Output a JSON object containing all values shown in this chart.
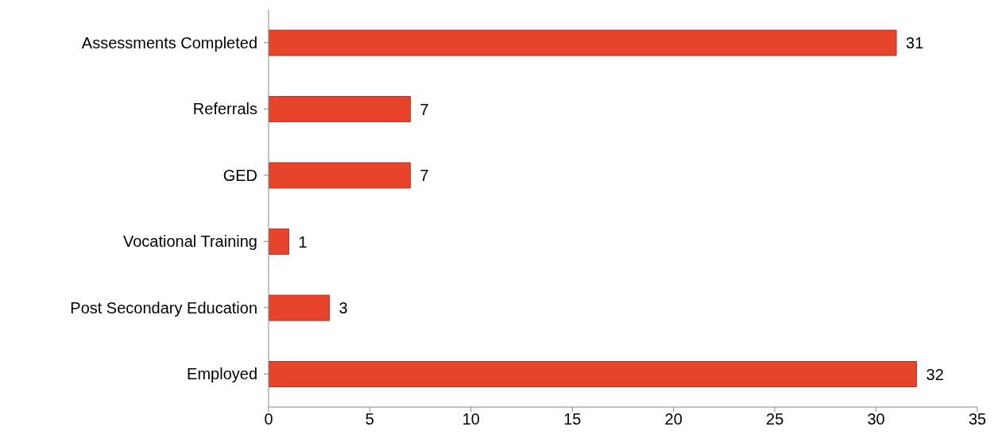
{
  "chart_data": {
    "type": "bar",
    "orientation": "horizontal",
    "categories": [
      "Assessments Completed",
      "Referrals",
      "GED",
      "Vocational Training",
      "Post Secondary Education",
      "Employed"
    ],
    "values": [
      31,
      7,
      7,
      1,
      3,
      32
    ],
    "color": "#e8432b",
    "data_labels": true,
    "xlim": [
      0,
      35
    ],
    "xticks": [
      0,
      5,
      10,
      15,
      20,
      25,
      30,
      35
    ],
    "grid": false
  }
}
